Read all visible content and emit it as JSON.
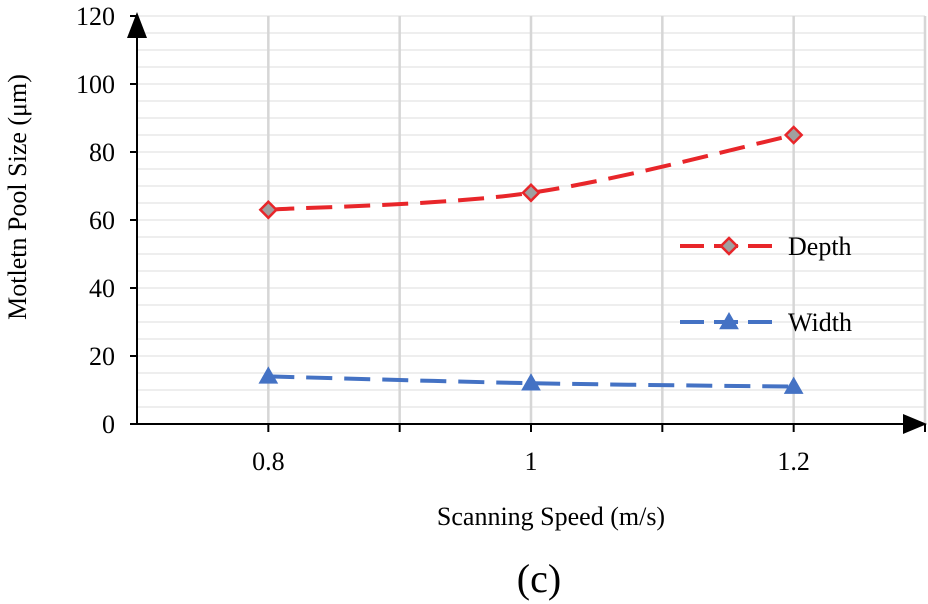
{
  "chart_data": {
    "type": "line",
    "x": [
      0.8,
      1,
      1.2
    ],
    "xtick_labels": [
      "0.8",
      "1",
      "1.2"
    ],
    "xlim": [
      0.7,
      1.3
    ],
    "ylim": [
      0,
      120
    ],
    "yticks": [
      0,
      20,
      40,
      60,
      80,
      100,
      120
    ],
    "xlabel": "Scanning Speed (m/s)",
    "ylabel": "Motletn Pool Size (μm)",
    "grid": true,
    "series": [
      {
        "name": "Depth",
        "values": [
          63,
          68,
          85
        ],
        "color": "#e8262a",
        "marker": "diamond",
        "marker_fill": "#a0a0a0"
      },
      {
        "name": "Width",
        "values": [
          14,
          12,
          11
        ],
        "color": "#4472c4",
        "marker": "triangle",
        "marker_fill": "#4472c4"
      }
    ],
    "legend_position": "right",
    "caption": "(c)"
  }
}
